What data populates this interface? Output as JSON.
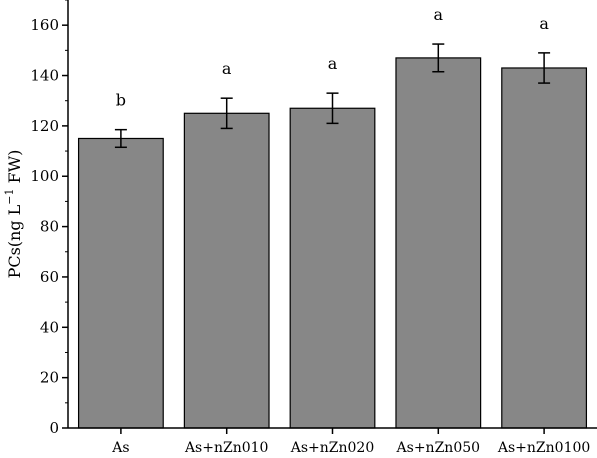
{
  "chart_data": {
    "type": "bar",
    "ylabel_main": "PCs(ng L",
    "ylabel_sup": "−1",
    "ylabel_tail": " FW)",
    "ylim": [
      0,
      170
    ],
    "yticks": [
      0,
      20,
      40,
      60,
      80,
      100,
      120,
      140,
      160
    ],
    "categories": [
      "As",
      "As+nZn010",
      "As+nZn020",
      "As+nZn050",
      "As+nZn0100"
    ],
    "values": [
      115,
      125,
      127,
      147,
      143
    ],
    "errors": [
      3.5,
      6,
      6,
      5.5,
      6
    ],
    "significance": [
      "b",
      "a",
      "a",
      "a",
      "a"
    ],
    "bar_color": "#878787",
    "grid": false,
    "legend": "none"
  }
}
